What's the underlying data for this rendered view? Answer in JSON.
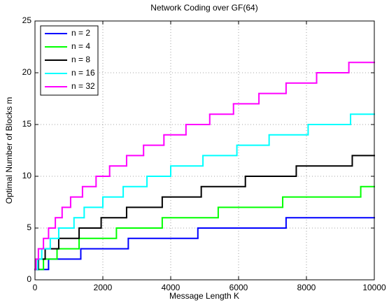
{
  "chart_data": {
    "type": "step",
    "title": "Network Coding over GF(64)",
    "x_label": "Message Length K",
    "y_label": "Optimal Number of Blocks m",
    "xlim": [
      0,
      10000
    ],
    "ylim": [
      0,
      25
    ],
    "xticks": [
      0,
      2000,
      4000,
      6000,
      8000,
      10000
    ],
    "yticks": [
      0,
      5,
      10,
      15,
      20,
      25
    ],
    "grid": true,
    "legend": "upper-left",
    "series": [
      {
        "name": "n = 2",
        "color": "#0000ff",
        "x": [
          0,
          400,
          1350,
          2750,
          4800,
          7400
        ],
        "values": [
          1,
          2,
          3,
          4,
          5,
          6
        ]
      },
      {
        "name": "n = 4",
        "color": "#00ff00",
        "x": [
          0,
          250,
          650,
          1300,
          2400,
          3750,
          5400,
          7300,
          9600
        ],
        "values": [
          1,
          2,
          3,
          4,
          5,
          6,
          7,
          8,
          9
        ]
      },
      {
        "name": "n = 8",
        "color": "#000000",
        "x": [
          0,
          100,
          300,
          700,
          1300,
          1950,
          2700,
          3750,
          4900,
          6200,
          7700,
          9350
        ],
        "values": [
          1,
          2,
          3,
          4,
          5,
          6,
          7,
          8,
          9,
          10,
          11,
          12
        ]
      },
      {
        "name": "n = 16",
        "color": "#00ffff",
        "x": [
          0,
          80,
          200,
          450,
          700,
          1150,
          1450,
          2000,
          2600,
          3300,
          4000,
          4950,
          5950,
          6900,
          8050,
          9300
        ],
        "values": [
          1,
          2,
          3,
          4,
          5,
          6,
          7,
          8,
          9,
          10,
          11,
          12,
          13,
          14,
          15,
          16
        ]
      },
      {
        "name": "n = 32",
        "color": "#ff00ff",
        "x": [
          0,
          30,
          100,
          250,
          400,
          600,
          800,
          1050,
          1400,
          1800,
          2200,
          2700,
          3200,
          3800,
          4450,
          5150,
          5850,
          6600,
          7400,
          8300,
          9250
        ],
        "values": [
          1,
          2,
          3,
          4,
          5,
          6,
          7,
          8,
          9,
          10,
          11,
          12,
          13,
          14,
          15,
          16,
          17,
          18,
          19,
          20,
          21
        ]
      }
    ]
  }
}
